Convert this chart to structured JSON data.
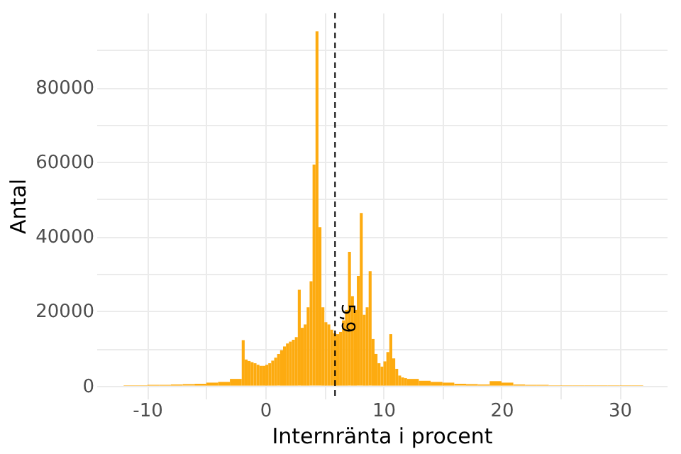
{
  "chart_data": {
    "type": "histogram",
    "xlabel": "Internränta i procent",
    "ylabel": "Antal",
    "color": "#fdab10",
    "bins": [
      -12,
      -11,
      -10,
      -9,
      -8,
      -7,
      -6,
      -5,
      -4,
      -3,
      -2,
      -1.75,
      -1.5,
      -1.25,
      -1,
      -0.75,
      -0.5,
      -0.25,
      0,
      0.25,
      0.5,
      0.75,
      1,
      1.25,
      1.5,
      1.75,
      2,
      2.25,
      2.5,
      2.75,
      3,
      3.25,
      3.5,
      3.75,
      4,
      4.25,
      4.5,
      4.75,
      5,
      5.25,
      5.5,
      5.75,
      6,
      6.25,
      6.5,
      6.75,
      7,
      7.25,
      7.5,
      7.75,
      8,
      8.25,
      8.5,
      8.75,
      9,
      9.25,
      9.5,
      9.75,
      10,
      10.25,
      10.5,
      10.75,
      11,
      11.25,
      11.5,
      11.75,
      12,
      13,
      14,
      15,
      16,
      17,
      18,
      19,
      20,
      21,
      22,
      23,
      24,
      25,
      26,
      27,
      28,
      29,
      30,
      31,
      32
    ],
    "values": [
      100,
      100,
      200,
      200,
      300,
      400,
      500,
      800,
      1000,
      1800,
      12200,
      7000,
      6600,
      6300,
      6000,
      5600,
      5300,
      5300,
      5600,
      6000,
      6700,
      7500,
      8500,
      9500,
      10500,
      11300,
      11800,
      12300,
      13000,
      25700,
      15500,
      16400,
      21000,
      28000,
      59300,
      95000,
      42500,
      21000,
      17000,
      16400,
      15000,
      14000,
      13800,
      14400,
      17500,
      20300,
      35900,
      24000,
      20300,
      29400,
      46300,
      19000,
      21000,
      30700,
      12500,
      8500,
      6000,
      5100,
      6500,
      9000,
      13800,
      7300,
      4500,
      2700,
      2200,
      2000,
      1800,
      1300,
      1000,
      800,
      500,
      400,
      300,
      1200,
      800,
      300,
      200,
      200,
      100,
      100,
      100,
      100,
      100,
      100,
      100,
      100
    ],
    "xlim": [
      -14.3,
      34
    ],
    "ylim": [
      -3500,
      100000
    ],
    "xticks": [
      -10,
      {
        "value": -5,
        "label": null
      },
      0,
      {
        "value": 5,
        "label": null
      },
      10,
      {
        "value": 15,
        "label": null
      },
      20,
      {
        "value": 25,
        "label": null
      },
      30
    ],
    "yticks": [
      0,
      {
        "value": 10000,
        "label": null
      },
      20000,
      {
        "value": 30000,
        "label": null
      },
      40000,
      {
        "value": 50000,
        "label": null
      },
      60000,
      {
        "value": 70000,
        "label": null
      },
      80000,
      {
        "value": 90000,
        "label": null
      }
    ],
    "grid": true,
    "ref_lines": [
      {
        "axis": "x",
        "value": 5.9,
        "label": "5,9",
        "color": "#000000",
        "line_style": "dashed"
      }
    ]
  }
}
